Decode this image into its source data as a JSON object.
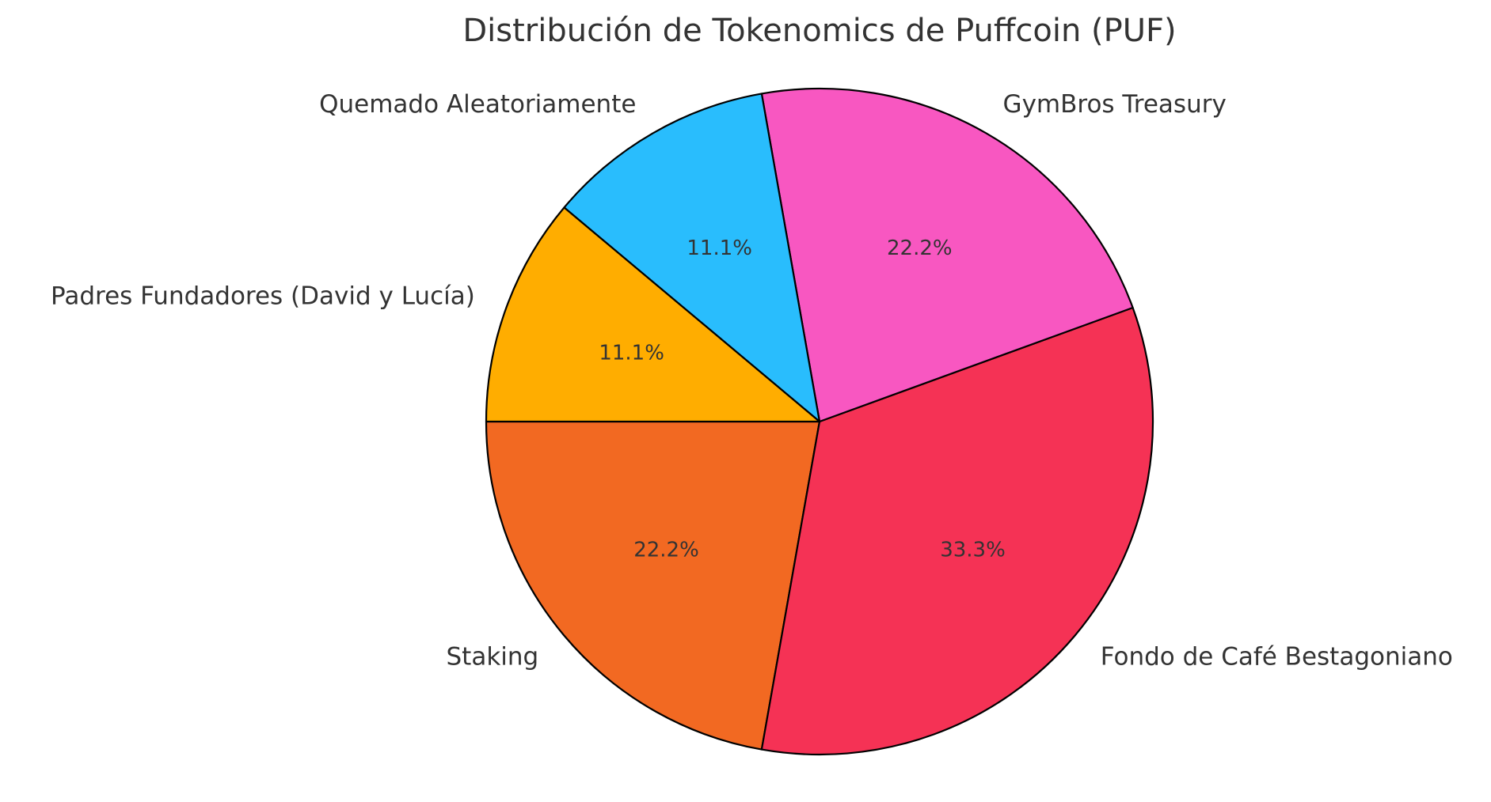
{
  "chart_data": {
    "type": "pie",
    "title": "Distribución de Tokenomics de Puffcoin (PUF)",
    "start_angle_deg": 180,
    "direction": "counterclockwise",
    "slices": [
      {
        "label": "Staking",
        "value": 22.2,
        "pct_label": "22.2%",
        "color": "#F26922"
      },
      {
        "label": "Fondo de Café Bestagoniano",
        "value": 33.3,
        "pct_label": "33.3%",
        "color": "#F53255"
      },
      {
        "label": "GymBros Treasury",
        "value": 22.2,
        "pct_label": "22.2%",
        "color": "#F857C1"
      },
      {
        "label": "Quemado Aleatoriamente",
        "value": 11.1,
        "pct_label": "11.1%",
        "color": "#29BDFD"
      },
      {
        "label": "Padres Fundadores (David y Lucía)",
        "value": 11.1,
        "pct_label": "11.1%",
        "color": "#FFAD00"
      }
    ],
    "legend": "none",
    "grid": false
  }
}
